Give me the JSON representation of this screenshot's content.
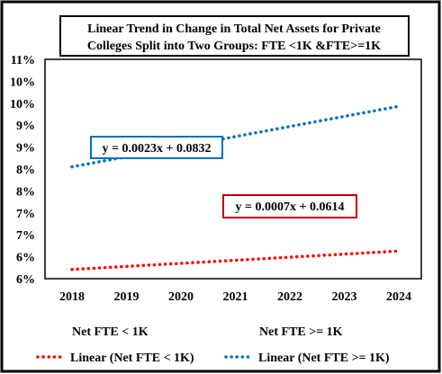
{
  "chart_data": {
    "type": "line",
    "title_lines": [
      "Linear Trend in Change in Total Net Assets for Private",
      "Colleges Split into Two Groups:  FTE <1K &FTE>=1K"
    ],
    "x": [
      2018,
      2019,
      2020,
      2021,
      2022,
      2023,
      2024
    ],
    "x_tick_labels": [
      "2018",
      "2019",
      "2020",
      "2021",
      "2022",
      "2023",
      "2024"
    ],
    "y_tick_labels": [
      "6%",
      "6%",
      "7%",
      "7%",
      "8%",
      "8%",
      "9%",
      "9%",
      "10%",
      "10%",
      "11%"
    ],
    "ylim": [
      0.06,
      0.11
    ],
    "grid": false,
    "series": [
      {
        "name": "Net FTE < 1K",
        "trendline_name": "Linear (Net FTE < 1K)",
        "color": "#ff0000",
        "slope": 0.0007,
        "intercept": 0.0614,
        "equation": "y = 0.0007x + 0.0614"
      },
      {
        "name": "Net FTE >= 1K",
        "trendline_name": "Linear (Net FTE >= 1K)",
        "color": "#0070c0",
        "slope": 0.0023,
        "intercept": 0.0832,
        "equation": "y = 0.0023x + 0.0832"
      }
    ],
    "legend_position": "bottom"
  }
}
